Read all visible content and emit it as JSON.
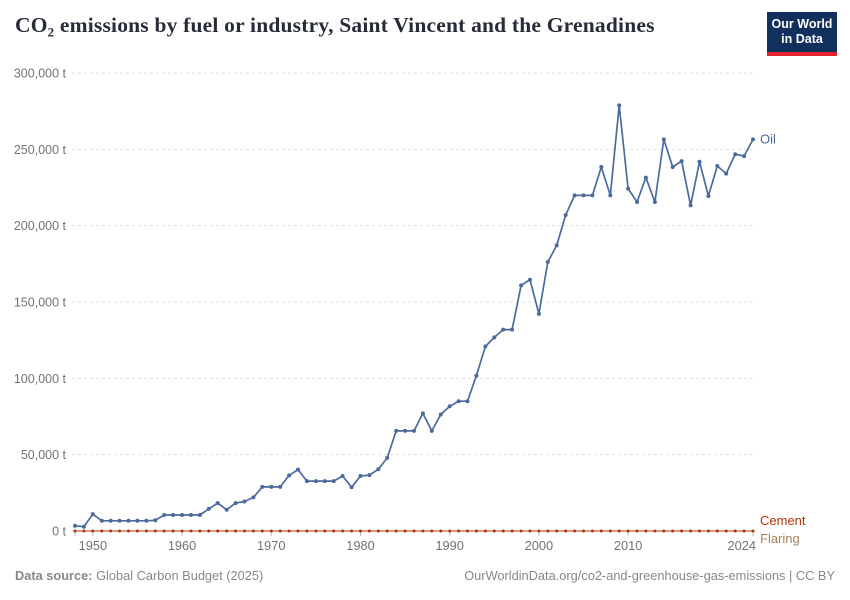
{
  "header": {
    "title": "CO₂ emissions by fuel or industry, Saint Vincent and the Grenadines",
    "logo": {
      "line1": "Our World",
      "line2": "in Data",
      "bg_color": "#12305e",
      "accent_color": "#e0232c"
    }
  },
  "chart_data": {
    "type": "line",
    "title": "CO₂ emissions by fuel or industry, Saint Vincent and the Grenadines",
    "unit": "t",
    "x_start": 1948,
    "x_end": 2024,
    "x_step_years": 1,
    "series": [
      {
        "name": "Oil",
        "color": "#4c6a9c",
        "values": [
          3400,
          2800,
          11100,
          6700,
          6700,
          6700,
          6700,
          6700,
          6700,
          7000,
          10500,
          10500,
          10500,
          10500,
          10500,
          14500,
          18300,
          13900,
          18300,
          19300,
          22000,
          28900,
          28900,
          28900,
          36400,
          40200,
          32700,
          32700,
          32700,
          32700,
          36000,
          28700,
          36000,
          36600,
          40400,
          47900,
          65600,
          65600,
          65600,
          77000,
          65600,
          76300,
          81700,
          85000,
          85000,
          101800,
          120900,
          126800,
          131900,
          131900,
          160900,
          164600,
          142200,
          176200,
          187100,
          207000,
          219800,
          219800,
          219800,
          238400,
          219800,
          278800,
          224300,
          215500,
          231500,
          215500,
          256500,
          238400,
          242300,
          213300,
          241900,
          219400,
          239100,
          234100,
          246800,
          245600,
          256500
        ]
      },
      {
        "name": "Cement",
        "color": "#b13507",
        "fill_value": 0
      },
      {
        "name": "Flaring",
        "color": "#a8845c",
        "fill_value": 0
      }
    ],
    "ylim": [
      0,
      300000
    ],
    "yticks": [
      {
        "value": 0,
        "label": "0 t"
      },
      {
        "value": 50000,
        "label": "50,000 t"
      },
      {
        "value": 100000,
        "label": "100,000 t"
      },
      {
        "value": 150000,
        "label": "150,000 t"
      },
      {
        "value": 200000,
        "label": "200,000 t"
      },
      {
        "value": 250000,
        "label": "250,000 t"
      },
      {
        "value": 300000,
        "label": "300,000 t"
      }
    ],
    "xticks": [
      "1950",
      "1960",
      "1970",
      "1980",
      "1990",
      "2000",
      "2010",
      "2024"
    ],
    "grid": "horizontal dashed",
    "legend": "direct labels at right of lines"
  },
  "footer": {
    "source_label": "Data source:",
    "source_value": "Global Carbon Budget (2025)",
    "link": "OurWorldinData.org/co2-and-greenhouse-gas-emissions | CC BY"
  }
}
